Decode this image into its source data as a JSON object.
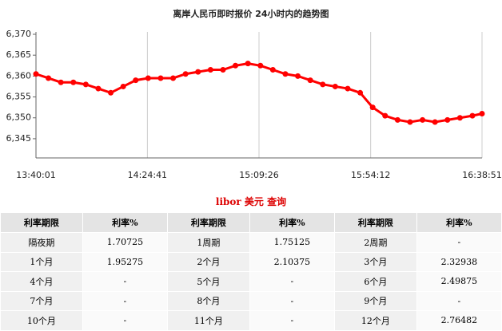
{
  "chart_data": {
    "type": "line",
    "title": "离岸人民币即时报价 24小时内的趋势图",
    "color": "#ff0000",
    "grid": "x",
    "x": [
      "13:40:01",
      "13:45:00",
      "13:50:00",
      "13:55:00",
      "14:00:00",
      "14:05:00",
      "14:10:00",
      "14:15:00",
      "14:20:00",
      "14:25:00",
      "14:30:00",
      "14:35:00",
      "14:40:00",
      "14:45:00",
      "14:50:00",
      "14:55:00",
      "15:00:00",
      "15:05:00",
      "15:10:00",
      "15:15:00",
      "15:20:00",
      "15:25:00",
      "15:30:00",
      "15:35:00",
      "15:40:00",
      "15:45:00",
      "15:50:00",
      "15:55:00",
      "16:00:00",
      "16:05:00",
      "16:10:00",
      "16:15:00",
      "16:20:00",
      "16:25:00",
      "16:30:00",
      "16:35:00",
      "16:38:51"
    ],
    "values": [
      6.3605,
      6.3595,
      6.3585,
      6.3585,
      6.358,
      6.357,
      6.356,
      6.3575,
      6.359,
      6.3595,
      6.3595,
      6.3595,
      6.3605,
      6.361,
      6.3615,
      6.3615,
      6.3625,
      6.363,
      6.3625,
      6.3615,
      6.3605,
      6.36,
      6.359,
      6.358,
      6.3575,
      6.357,
      6.356,
      6.3525,
      6.3505,
      6.3495,
      6.349,
      6.3495,
      6.349,
      6.3495,
      6.35,
      6.3505,
      6.351
    ],
    "xlim": [
      "13:40:01",
      "16:38:51"
    ],
    "xticks": [
      "13:40:01",
      "14:24:41",
      "15:09:26",
      "15:54:12",
      "16:38:51"
    ],
    "ylim": [
      6.3404,
      6.37
    ],
    "yticks": [
      {
        "value": 6.345,
        "label": "6,345"
      },
      {
        "value": 6.35,
        "label": "6,350"
      },
      {
        "value": 6.355,
        "label": "6,355"
      },
      {
        "value": 6.36,
        "label": "6,360"
      },
      {
        "value": 6.365,
        "label": "6,365"
      },
      {
        "value": 6.37,
        "label": "6,370"
      }
    ]
  },
  "table": {
    "title": "libor 美元 查询",
    "header": [
      "利率期限",
      "利率%",
      "利率期限",
      "利率%",
      "利率期限",
      "利率%"
    ],
    "rows": [
      [
        "隔夜期",
        "1.70725",
        "1周期",
        "1.75125",
        "2周期",
        "-"
      ],
      [
        "1个月",
        "1.95275",
        "2个月",
        "2.10375",
        "3个月",
        "2.32938"
      ],
      [
        "4个月",
        "-",
        "5个月",
        "-",
        "6个月",
        "2.49875"
      ],
      [
        "7个月",
        "-",
        "8个月",
        "-",
        "9个月",
        "-"
      ],
      [
        "10个月",
        "-",
        "11个月",
        "-",
        "12个月",
        "2.76482"
      ]
    ]
  }
}
